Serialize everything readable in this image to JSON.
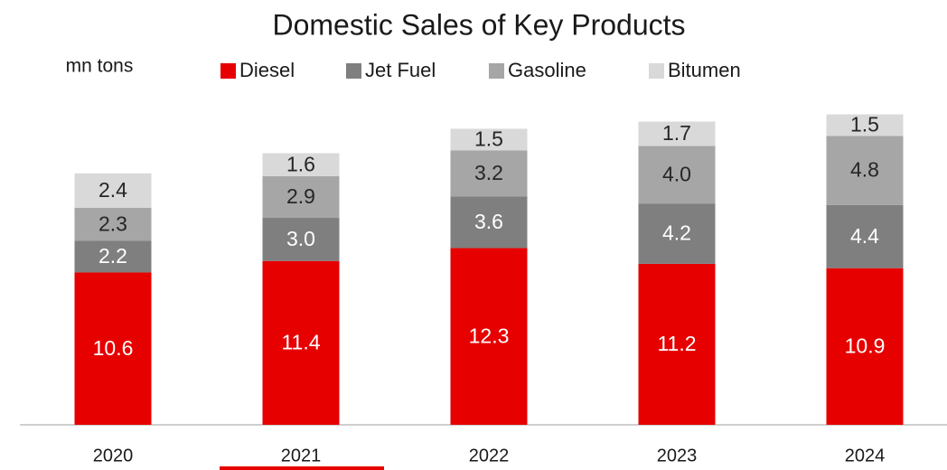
{
  "chart_data": {
    "type": "stacked_bar",
    "title": "Domestic Sales of Key Products",
    "y_label": "mn tons",
    "categories": [
      "2020",
      "2021",
      "2022",
      "2023",
      "2024"
    ],
    "series": [
      {
        "name": "Diesel",
        "color": "#e60000",
        "values": [
          10.6,
          11.4,
          12.3,
          11.2,
          10.9
        ],
        "value_labels": [
          "10.6",
          "11.4",
          "12.3",
          "11.2",
          "10.9"
        ]
      },
      {
        "name": "Jet Fuel",
        "color": "#7f7f7f",
        "values": [
          2.2,
          3.0,
          3.6,
          4.2,
          4.4
        ],
        "value_labels": [
          "2.2",
          "3.0",
          "3.6",
          "4.2",
          "4.4"
        ]
      },
      {
        "name": "Gasoline",
        "color": "#a6a6a6",
        "values": [
          2.3,
          2.9,
          3.2,
          4.0,
          4.8
        ],
        "value_labels": [
          "2.3",
          "2.9",
          "3.2",
          "4.0",
          "4.8"
        ]
      },
      {
        "name": "Bitumen",
        "color": "#d9d9d9",
        "values": [
          2.4,
          1.6,
          1.5,
          1.7,
          1.5
        ],
        "value_labels": [
          "2.4",
          "1.6",
          "1.5",
          "1.7",
          "1.5"
        ]
      }
    ]
  }
}
